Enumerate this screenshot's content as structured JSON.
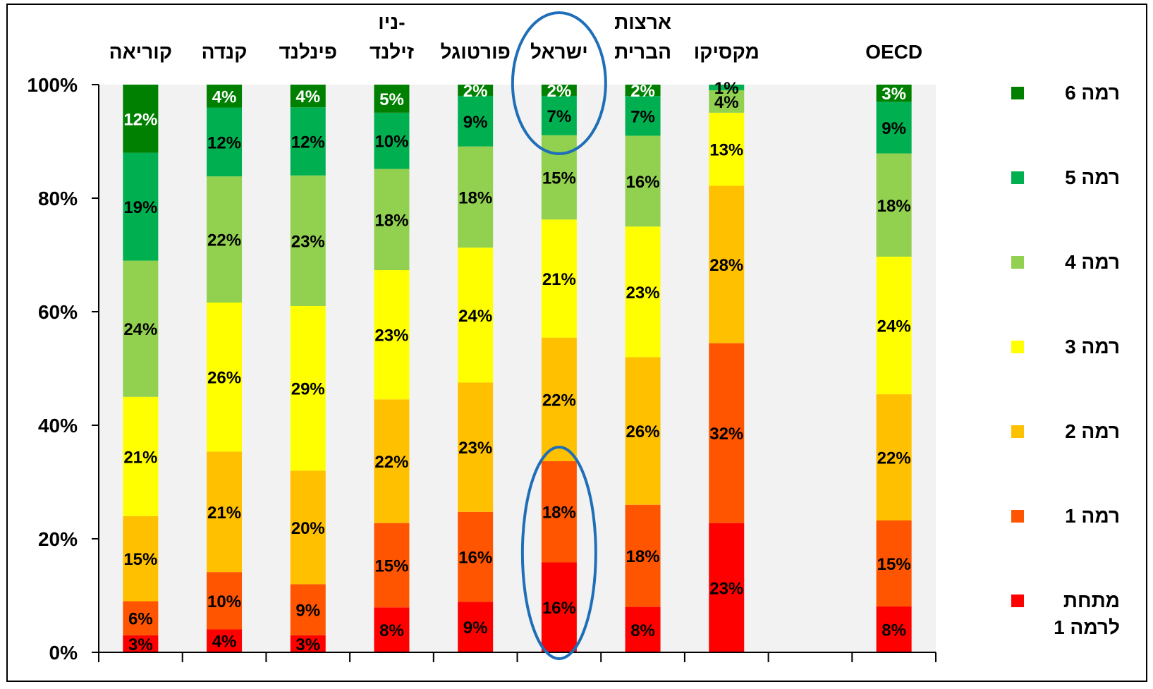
{
  "chart_data": {
    "type": "bar",
    "stacked": true,
    "percent": true,
    "categories": [
      "קוריאה",
      "קנדה",
      "פינלנד",
      "ניו-\nזילנד",
      "פורטוגל",
      "ישראל",
      "ארצות\nהברית",
      "מקסיקו",
      "",
      "OECD"
    ],
    "series": [
      {
        "name": "מתחת לרמה 1",
        "color": "#ff0000",
        "values": [
          3,
          4,
          3,
          8,
          9,
          16,
          8,
          23,
          null,
          8
        ]
      },
      {
        "name": "רמה 1",
        "color": "#ff5500",
        "values": [
          6,
          10,
          9,
          15,
          16,
          18,
          18,
          32,
          null,
          15
        ]
      },
      {
        "name": "רמה 2",
        "color": "#ffc000",
        "values": [
          15,
          21,
          20,
          22,
          23,
          22,
          26,
          28,
          null,
          22
        ]
      },
      {
        "name": "רמה 3",
        "color": "#ffff00",
        "values": [
          21,
          26,
          29,
          23,
          24,
          21,
          23,
          13,
          null,
          24
        ]
      },
      {
        "name": "רמה 4",
        "color": "#92d050",
        "values": [
          24,
          22,
          23,
          18,
          18,
          15,
          16,
          4,
          null,
          18
        ]
      },
      {
        "name": "רמה 5",
        "color": "#00b050",
        "values": [
          19,
          12,
          12,
          10,
          9,
          7,
          7,
          1,
          null,
          9
        ]
      },
      {
        "name": "רמה 6",
        "color": "#008000",
        "values": [
          12,
          4,
          4,
          5,
          2,
          2,
          2,
          0,
          null,
          3
        ]
      }
    ],
    "data_labels": {
      "מתחת לרמה 1": [
        "3%",
        "4%",
        "3%",
        "8%",
        "9%",
        "16%",
        "8%",
        "23%",
        "",
        "8%"
      ],
      "רמה 1": [
        "6%",
        "10%",
        "9%",
        "15%",
        "16%",
        "18%",
        "18%",
        "32%",
        "",
        "15%"
      ],
      "רמה 2": [
        "15%",
        "21%",
        "20%",
        "22%",
        "23%",
        "22%",
        "26%",
        "28%",
        "",
        "22%"
      ],
      "רמה 3": [
        "21%",
        "26%",
        "29%",
        "23%",
        "24%",
        "21%",
        "23%",
        "13%",
        "",
        "24%"
      ],
      "רמה 4": [
        "24%",
        "22%",
        "23%",
        "18%",
        "18%",
        "15%",
        "16%",
        "4%",
        "",
        "18%"
      ],
      "רמה 5": [
        "19%",
        "12%",
        "12%",
        "10%",
        "9%",
        "7%",
        "7%",
        "1%",
        "",
        "9%"
      ],
      "רמה 6": [
        "12%",
        "4%",
        "4%",
        "5%",
        "2%",
        "2%",
        "2%",
        "",
        "",
        "3%"
      ]
    },
    "yticks": [
      "0%",
      "20%",
      "40%",
      "60%",
      "80%",
      "100%"
    ],
    "ylim": [
      0,
      100
    ],
    "legend_position": "right",
    "highlighted_category": "ישראל",
    "plot_background": "#f2f2f2"
  }
}
